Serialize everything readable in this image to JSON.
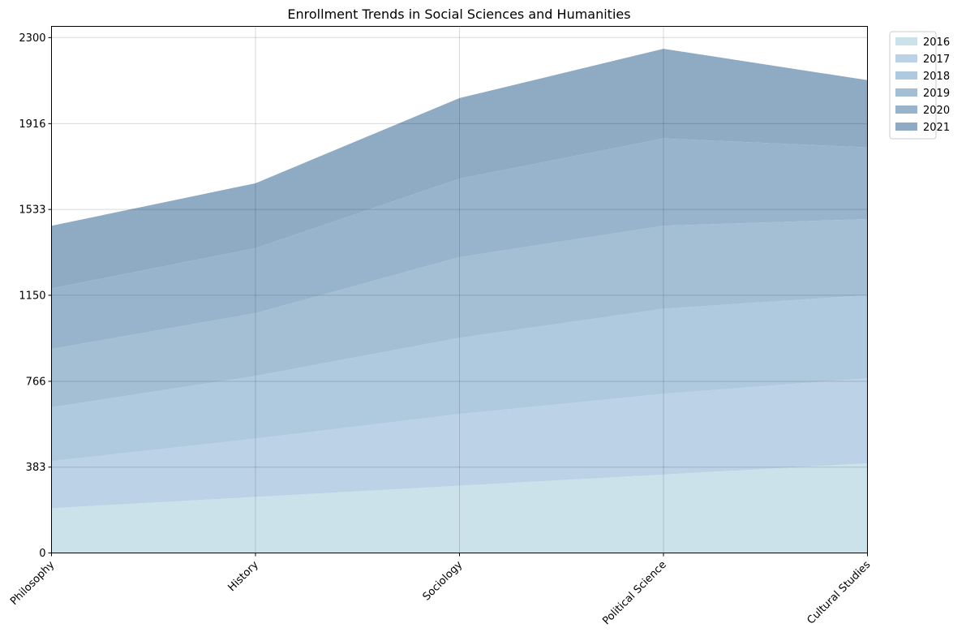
{
  "chart_data": {
    "type": "area",
    "stacked": true,
    "title": "Enrollment Trends in Social Sciences and Humanities",
    "xlabel": "",
    "ylabel": "",
    "categories": [
      "Philosophy",
      "History",
      "Sociology",
      "Political Science",
      "Cultural Studies"
    ],
    "yticks": [
      0,
      383,
      766,
      1150,
      1533,
      1916,
      2300
    ],
    "ylim": [
      0,
      2350
    ],
    "grid": true,
    "legend_position": "upper-right-outside",
    "series": [
      {
        "name": "2016",
        "color": "#cce2ea",
        "values": [
          200,
          250,
          300,
          350,
          400
        ]
      },
      {
        "name": "2017",
        "color": "#bcd2e6",
        "values": [
          210,
          260,
          320,
          360,
          380
        ]
      },
      {
        "name": "2018",
        "color": "#afc9de",
        "values": [
          240,
          280,
          340,
          380,
          370
        ]
      },
      {
        "name": "2019",
        "color": "#a4bed4",
        "values": [
          260,
          280,
          360,
          370,
          340
        ]
      },
      {
        "name": "2020",
        "color": "#98b4cd",
        "values": [
          270,
          290,
          350,
          390,
          320
        ]
      },
      {
        "name": "2021",
        "color": "#8eabc3",
        "values": [
          280,
          290,
          360,
          400,
          300
        ]
      }
    ]
  }
}
